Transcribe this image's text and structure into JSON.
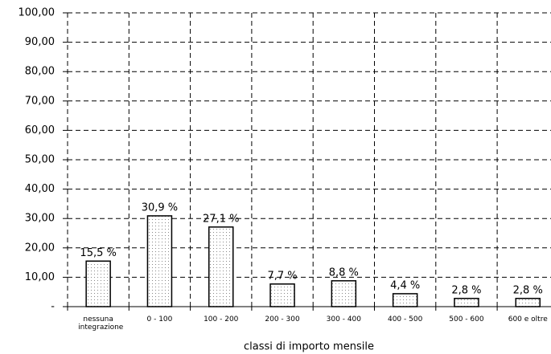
{
  "chart_data": {
    "type": "bar",
    "x_label": "classi di importo mensile",
    "categories": [
      "nessuna integrazione",
      "0 - 100",
      "100 - 200",
      "200 - 300",
      "300 - 400",
      "400 - 500",
      "500 - 600",
      "600 e oltre"
    ],
    "values": [
      15.5,
      30.9,
      27.1,
      7.7,
      8.8,
      4.4,
      2.8,
      2.8
    ],
    "value_labels": [
      "15,5 %",
      "30,9 %",
      "27,1 %",
      "7,7 %",
      "8,8 %",
      "4,4 %",
      "2,8 %",
      "2,8 %"
    ],
    "color": "#ffffff",
    "ylim": [
      0,
      100
    ],
    "yticks": [
      {
        "value": 0,
        "label": "-"
      },
      {
        "value": 10,
        "label": "10,00"
      },
      {
        "value": 20,
        "label": "20,00"
      },
      {
        "value": 30,
        "label": "30,00"
      },
      {
        "value": 40,
        "label": "40,00"
      },
      {
        "value": 50,
        "label": "50,00"
      },
      {
        "value": 60,
        "label": "60,00"
      },
      {
        "value": 70,
        "label": "70,00"
      },
      {
        "value": 80,
        "label": "80,00"
      },
      {
        "value": 90,
        "label": "90,00"
      },
      {
        "value": 100,
        "label": "100,00"
      }
    ],
    "grid": true
  }
}
